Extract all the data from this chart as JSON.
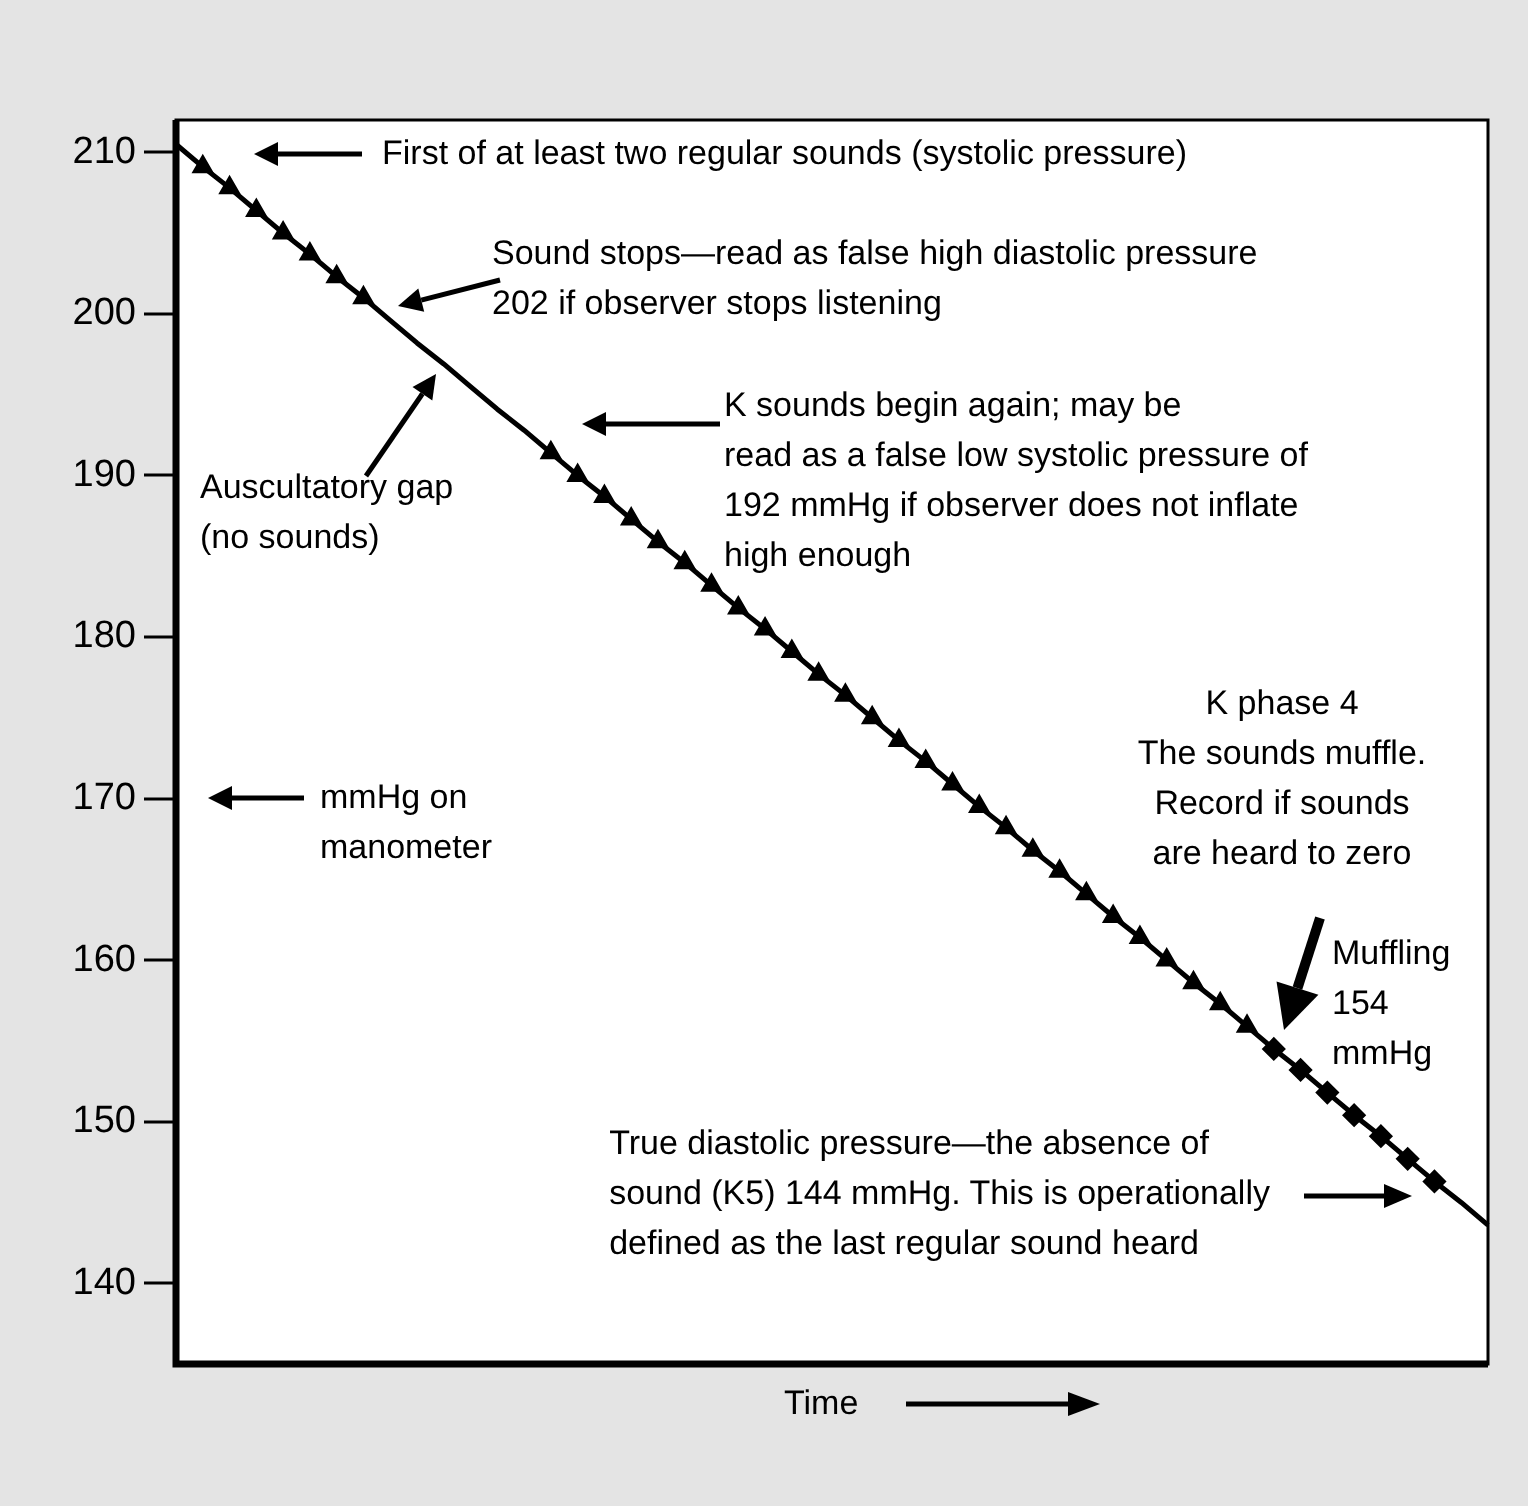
{
  "chart_data": {
    "type": "line",
    "xlabel": "Time",
    "categories": [
      null,
      null,
      null,
      null,
      null,
      null,
      null,
      null,
      null,
      null,
      null,
      null,
      null,
      null,
      null,
      null,
      null,
      null,
      null,
      null,
      null,
      null,
      null,
      null,
      null,
      null,
      null,
      null,
      null,
      null,
      null,
      null,
      null,
      null,
      null,
      null,
      null,
      null,
      null,
      null,
      null,
      null,
      null,
      null,
      null,
      null,
      null,
      null,
      null,
      null
    ],
    "ylim": [
      135,
      212
    ],
    "yticks": [
      140,
      150,
      160,
      170,
      180,
      190,
      200,
      210
    ],
    "grid": false,
    "legend": false,
    "tick_labels": "y",
    "annotations": [
      "First of at least two regular sounds (systolic pressure)",
      "Sound stops—read as false high diastolic pressure\n202 if observer stops listening",
      "Auscultatory gap\n(no sounds)",
      "K sounds begin again; may be\nread as a false low systolic pressure of\n192 mmHg if observer does not inflate\nhigh enough",
      "mmHg on\nmanometer",
      "K phase 4\nThe sounds muffle.\nRecord if sounds\nare heard to zero",
      "Muffling\n154\nmmHg",
      "True diastolic pressure—the absence of\nsound (K5) 144 mmHg. This is operationally\ndefined as the last regular sound heard"
    ],
    "series": [
      {
        "type": "line",
        "color": "#000000",
        "marker": "none",
        "values": [
          210.5,
          209.1,
          207.8,
          206.4,
          205.0,
          203.7,
          202.3,
          201.0,
          199.6,
          198.2,
          196.9,
          195.5,
          194.1,
          192.8,
          191.4,
          190.0,
          188.7,
          187.3,
          185.9,
          184.6,
          183.2,
          181.8,
          180.5,
          179.1,
          177.7,
          176.4,
          175.0,
          173.6,
          172.3,
          170.9,
          169.5,
          168.2,
          166.8,
          165.5,
          164.1,
          162.7,
          161.4,
          160.0,
          158.6,
          157.3,
          155.9,
          154.5,
          153.2,
          151.8,
          150.4,
          149.1,
          147.7,
          146.3,
          145.0,
          143.6
        ]
      },
      {
        "type": "scatter",
        "color": "#000000",
        "marker": "triangle",
        "values": [
          null,
          209.1,
          207.8,
          206.4,
          205.0,
          203.7,
          202.3,
          201.0,
          null,
          null,
          null,
          null,
          null,
          null,
          191.4,
          190.0,
          188.7,
          187.3,
          185.9,
          184.6,
          183.2,
          181.8,
          180.5,
          179.1,
          177.7,
          176.4,
          175.0,
          173.6,
          172.3,
          170.9,
          169.5,
          168.2,
          166.8,
          165.5,
          164.1,
          162.7,
          161.4,
          160.0,
          158.6,
          157.3,
          155.9,
          null,
          null,
          null,
          null,
          null,
          null,
          null,
          null,
          null
        ]
      },
      {
        "type": "scatter",
        "color": "#000000",
        "marker": "diamond",
        "values": [
          null,
          null,
          null,
          null,
          null,
          null,
          null,
          null,
          null,
          null,
          null,
          null,
          null,
          null,
          null,
          null,
          null,
          null,
          null,
          null,
          null,
          null,
          null,
          null,
          null,
          null,
          null,
          null,
          null,
          null,
          null,
          null,
          null,
          null,
          null,
          null,
          null,
          null,
          null,
          null,
          null,
          154.5,
          153.2,
          151.8,
          150.4,
          149.1,
          147.7,
          146.3,
          null,
          null
        ]
      }
    ]
  }
}
